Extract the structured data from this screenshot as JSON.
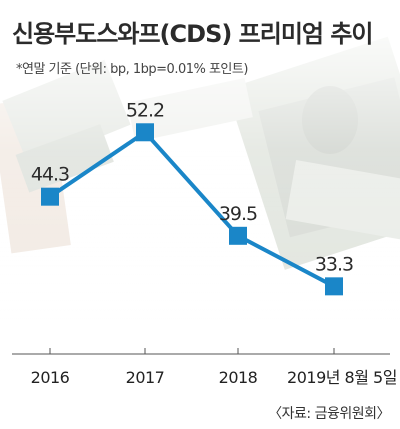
{
  "title": "신용부도스와프(CDS) 프리미엄 추이",
  "subtitle": "*연말 기준 (단위: bp, 1bp=0.01% 포인트)",
  "source": "〈자료: 금융위원회〉",
  "colors": {
    "line": "#1a86c8",
    "marker": "#1a86c8",
    "axis": "#555555"
  },
  "chart_data": {
    "type": "line",
    "categories": [
      "2016",
      "2017",
      "2018",
      "2019년 8월 5일"
    ],
    "values": [
      44.3,
      52.2,
      39.5,
      33.3
    ],
    "value_labels": [
      "44.3",
      "52.2",
      "39.5",
      "33.3"
    ],
    "title": "신용부도스와프(CDS) 프리미엄 추이",
    "ylim": [
      25,
      58
    ],
    "grid": false
  }
}
